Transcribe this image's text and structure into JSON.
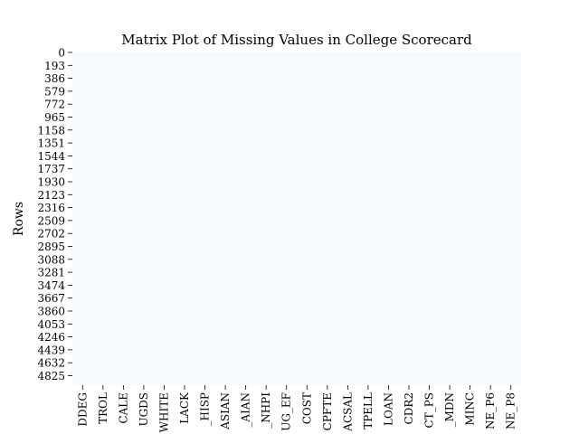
{
  "chart_data": {
    "type": "heatmap",
    "title": "Matrix Plot of Missing Values in College Scorecard",
    "xlabel": "",
    "ylabel": "Rows",
    "y_ticks": [
      "0",
      "193",
      "386",
      "579",
      "772",
      "965",
      "1158",
      "1351",
      "1544",
      "1737",
      "1930",
      "2123",
      "2316",
      "2509",
      "2702",
      "2895",
      "3088",
      "3281",
      "3474",
      "3667",
      "3860",
      "4053",
      "4246",
      "4439",
      "4632",
      "4825"
    ],
    "x_ticks": [
      "DDEG",
      "TROL",
      "CALE",
      "UGDS",
      "WHITE",
      "LACK",
      "_HISP",
      "ASIAN",
      "_AIAN",
      "_NHPI",
      "UG_EF",
      "COST",
      "CPFTE",
      "ACSAL",
      "TPELL",
      "LOAN",
      "CDR2",
      "CT_PS",
      "_MDN",
      "MINC",
      "NE_P6",
      "NE_P8"
    ],
    "grid": false,
    "colors": {
      "present": "#f7fbff"
    }
  }
}
